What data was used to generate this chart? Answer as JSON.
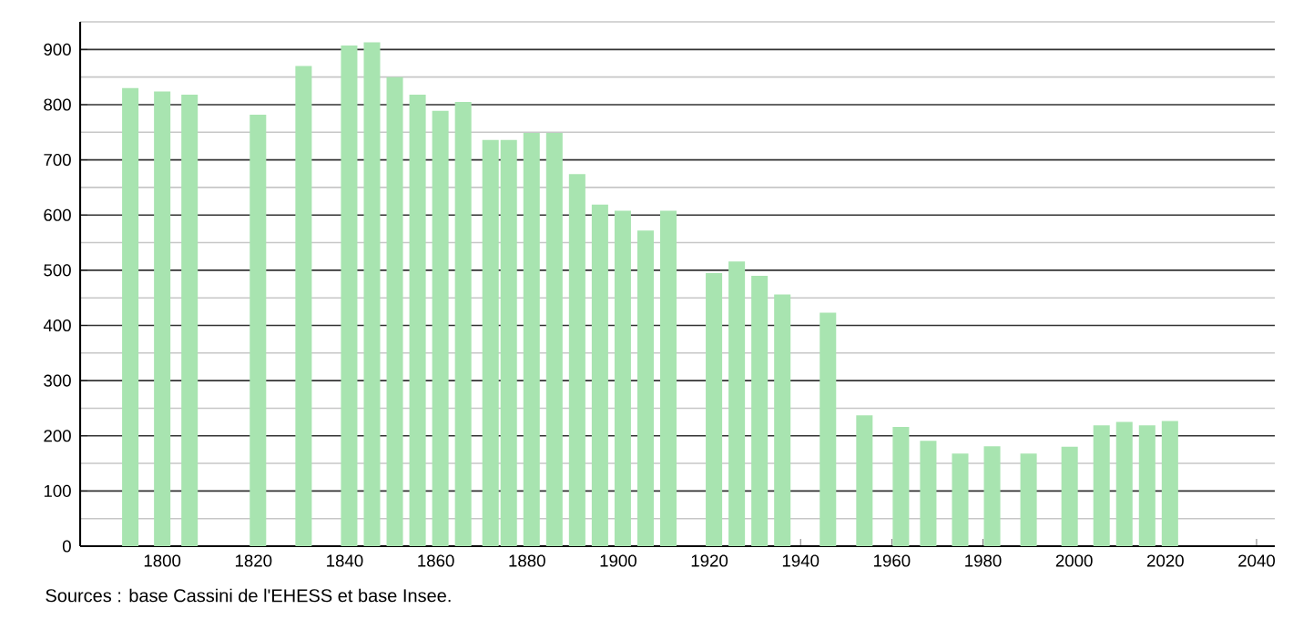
{
  "chart_data": {
    "type": "bar",
    "x": [
      1793,
      1800,
      1806,
      1821,
      1831,
      1841,
      1846,
      1851,
      1856,
      1861,
      1866,
      1872,
      1876,
      1881,
      1886,
      1891,
      1896,
      1901,
      1906,
      1911,
      1921,
      1926,
      1931,
      1936,
      1946,
      1954,
      1962,
      1968,
      1975,
      1982,
      1990,
      1999,
      2006,
      2011,
      2016,
      2021
    ],
    "values": [
      830,
      824,
      818,
      782,
      870,
      907,
      913,
      850,
      818,
      789,
      805,
      736,
      736,
      749,
      749,
      674,
      619,
      608,
      572,
      608,
      495,
      516,
      490,
      456,
      423,
      237,
      216,
      191,
      168,
      181,
      168,
      180,
      219,
      225,
      219,
      227
    ],
    "color": "#a8e4b0",
    "xlim": [
      1782,
      2044
    ],
    "xticks": [
      1800,
      1820,
      1840,
      1860,
      1880,
      1900,
      1920,
      1940,
      1960,
      1980,
      2000,
      2020,
      2040
    ],
    "ylim": [
      0,
      950
    ],
    "yticks": [
      0,
      {
        "value": 50,
        "label": null
      },
      100,
      {
        "value": 150,
        "label": null
      },
      200,
      {
        "value": 250,
        "label": null
      },
      300,
      {
        "value": 350,
        "label": null
      },
      400,
      {
        "value": 450,
        "label": null
      },
      500,
      {
        "value": 550,
        "label": null
      },
      600,
      {
        "value": 650,
        "label": null
      },
      700,
      {
        "value": 750,
        "label": null
      },
      800,
      {
        "value": 850,
        "label": null
      },
      900,
      {
        "value": 950,
        "label": null
      }
    ],
    "grid": "y",
    "annotations": [
      "Sources : base Cassini de l'EHESS et base Insee."
    ]
  }
}
